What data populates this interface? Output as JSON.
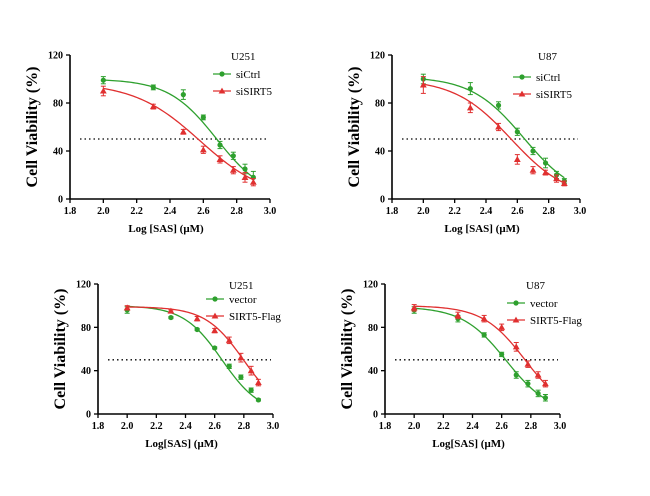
{
  "chart_data": [
    {
      "type": "scatter",
      "title": "U251",
      "xlabel": "Log [SAS] (μM)",
      "ylabel": "Cell Viability (%)",
      "xlim": [
        1.8,
        3.0
      ],
      "ylim": [
        0,
        120
      ],
      "xticks": [
        "1.8",
        "2.0",
        "2.2",
        "2.4",
        "2.6",
        "2.8",
        "3.0"
      ],
      "yticks": [
        "0",
        "40",
        "80",
        "120"
      ],
      "reference_line": 50,
      "fit": "sigmoidal dose-response",
      "legend_position": "top-right",
      "series": [
        {
          "name": "siCtrl",
          "color": "#2ea02e",
          "marker": "circle",
          "fit_params": {
            "top": 100,
            "bottom": 0,
            "logIC50": 2.68,
            "hill": 3.0
          },
          "x": [
            2.0,
            2.3,
            2.48,
            2.6,
            2.7,
            2.78,
            2.85,
            2.9
          ],
          "y": [
            99,
            93,
            87,
            68,
            45,
            36,
            25,
            18
          ],
          "err": [
            3,
            2,
            4,
            2,
            3,
            3,
            4,
            5
          ]
        },
        {
          "name": "siSIRT5",
          "color": "#e03030",
          "marker": "triangle",
          "fit_params": {
            "top": 97,
            "bottom": 0,
            "logIC50": 2.58,
            "hill": 2.2
          },
          "x": [
            2.0,
            2.3,
            2.48,
            2.6,
            2.7,
            2.78,
            2.85,
            2.9
          ],
          "y": [
            90,
            77,
            56,
            41,
            33,
            24,
            18,
            14
          ],
          "err": [
            4,
            2,
            2,
            3,
            3,
            3,
            4,
            3
          ]
        }
      ]
    },
    {
      "type": "scatter",
      "title": "U87",
      "xlabel": "Log [SAS] (μM)",
      "ylabel": "Cell Viability (%)",
      "xlim": [
        1.8,
        3.0
      ],
      "ylim": [
        0,
        120
      ],
      "xticks": [
        "1.8",
        "2.0",
        "2.2",
        "2.4",
        "2.6",
        "2.8",
        "3.0"
      ],
      "yticks": [
        "0",
        "40",
        "80",
        "120"
      ],
      "reference_line": 50,
      "fit": "sigmoidal dose-response",
      "legend_position": "top-right",
      "series": [
        {
          "name": "siCtrl",
          "color": "#2ea02e",
          "marker": "circle",
          "fit_params": {
            "top": 102,
            "bottom": 0,
            "logIC50": 2.64,
            "hill": 2.6
          },
          "x": [
            2.0,
            2.3,
            2.48,
            2.6,
            2.7,
            2.78,
            2.85,
            2.9
          ],
          "y": [
            100,
            92,
            78,
            56,
            40,
            30,
            20,
            15
          ],
          "err": [
            4,
            5,
            3,
            3,
            3,
            4,
            3,
            2
          ]
        },
        {
          "name": "siSIRT5",
          "color": "#e03030",
          "marker": "triangle",
          "fit_params": {
            "top": 100,
            "bottom": 0,
            "logIC50": 2.56,
            "hill": 2.4
          },
          "x": [
            2.0,
            2.3,
            2.48,
            2.6,
            2.7,
            2.78,
            2.85,
            2.9
          ],
          "y": [
            95,
            76,
            60,
            33,
            24,
            22,
            17,
            13
          ],
          "err": [
            7,
            4,
            3,
            4,
            3,
            2,
            3,
            2
          ]
        }
      ]
    },
    {
      "type": "scatter",
      "title": "U251",
      "xlabel": "Log[SAS] (μM)",
      "ylabel": "Cell Viability (%)",
      "xlim": [
        1.8,
        3.0
      ],
      "ylim": [
        0,
        120
      ],
      "xticks": [
        "1.8",
        "2.0",
        "2.2",
        "2.4",
        "2.6",
        "2.8",
        "3.0"
      ],
      "yticks": [
        "0",
        "40",
        "80",
        "120"
      ],
      "reference_line": 50,
      "fit": "sigmoidal dose-response",
      "legend_position": "top-right",
      "series": [
        {
          "name": "vector",
          "color": "#2ea02e",
          "marker": "circle",
          "fit_params": {
            "top": 100,
            "bottom": 0,
            "logIC50": 2.65,
            "hill": 3.3
          },
          "x": [
            2.0,
            2.3,
            2.48,
            2.6,
            2.7,
            2.78,
            2.85,
            2.9
          ],
          "y": [
            96,
            89,
            78,
            61,
            44,
            34,
            22,
            13
          ],
          "err": [
            3,
            1,
            1,
            1,
            2,
            2,
            2,
            1
          ]
        },
        {
          "name": "SIRT5-Flag",
          "color": "#e03030",
          "marker": "triangle",
          "fit_params": {
            "top": 99,
            "bottom": 0,
            "logIC50": 2.8,
            "hill": 3.3
          },
          "x": [
            2.0,
            2.3,
            2.48,
            2.6,
            2.7,
            2.78,
            2.85,
            2.9
          ],
          "y": [
            98,
            95,
            88,
            77,
            68,
            52,
            40,
            29
          ],
          "err": [
            2,
            1,
            2,
            2,
            3,
            4,
            4,
            3
          ]
        }
      ]
    },
    {
      "type": "scatter",
      "title": "U87",
      "xlabel": "Log[SAS] (μM)",
      "ylabel": "Cell Viability (%)",
      "xlim": [
        1.8,
        3.0
      ],
      "ylim": [
        0,
        120
      ],
      "xticks": [
        "1.8",
        "2.0",
        "2.2",
        "2.4",
        "2.6",
        "2.8",
        "3.0"
      ],
      "yticks": [
        "0",
        "40",
        "80",
        "120"
      ],
      "reference_line": 50,
      "fit": "sigmoidal dose-response",
      "legend_position": "top-right",
      "series": [
        {
          "name": "vector",
          "color": "#2ea02e",
          "marker": "circle",
          "fit_params": {
            "top": 99,
            "bottom": 0,
            "logIC50": 2.63,
            "hill": 2.9
          },
          "x": [
            2.0,
            2.3,
            2.48,
            2.6,
            2.7,
            2.78,
            2.85,
            2.9
          ],
          "y": [
            96,
            88,
            73,
            55,
            36,
            28,
            19,
            15
          ],
          "err": [
            3,
            3,
            2,
            2,
            3,
            3,
            3,
            3
          ]
        },
        {
          "name": "SIRT5-Flag",
          "color": "#e03030",
          "marker": "triangle",
          "fit_params": {
            "top": 100,
            "bottom": 0,
            "logIC50": 2.76,
            "hill": 3.0
          },
          "x": [
            2.0,
            2.3,
            2.48,
            2.6,
            2.7,
            2.78,
            2.85,
            2.9
          ],
          "y": [
            98,
            91,
            88,
            80,
            62,
            46,
            36,
            28
          ],
          "err": [
            3,
            3,
            3,
            3,
            4,
            3,
            3,
            3
          ]
        }
      ]
    }
  ]
}
